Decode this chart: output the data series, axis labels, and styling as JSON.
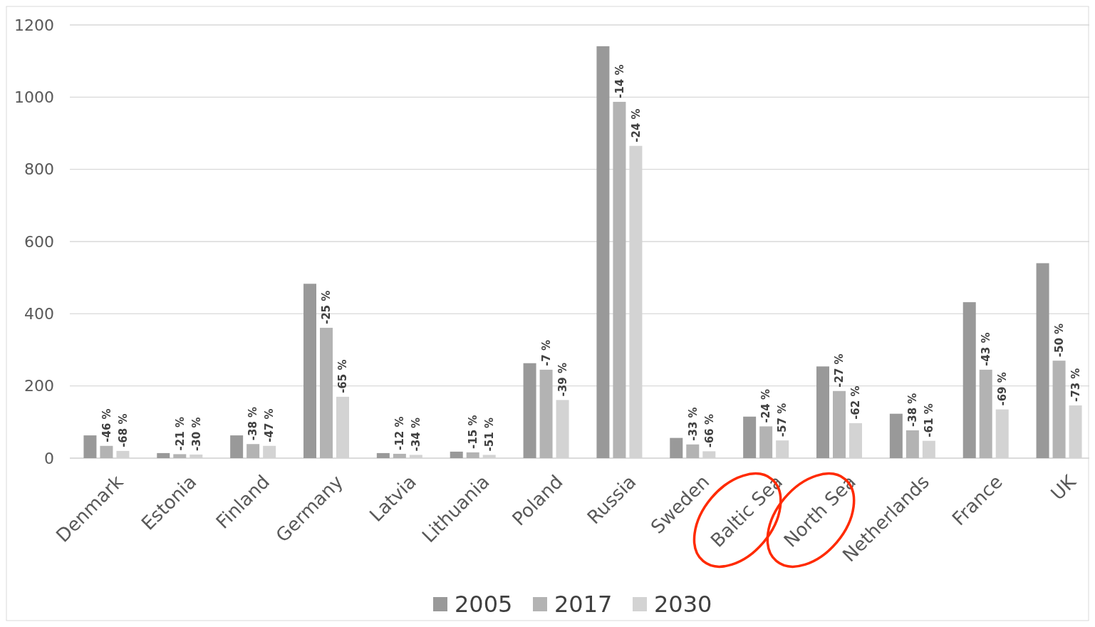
{
  "chart_data": {
    "type": "bar",
    "categories": [
      "Denmark",
      "Estonia",
      "Finland",
      "Germany",
      "Latvia",
      "Lithuania",
      "Poland",
      "Russia",
      "Sweden",
      "Baltic Sea",
      "North Sea",
      "Netherlands",
      "France",
      "UK"
    ],
    "series": [
      {
        "name": "2005",
        "color": "#999999",
        "values": [
          63,
          14,
          63,
          483,
          14,
          18,
          263,
          1141,
          56,
          115,
          254,
          123,
          432,
          540
        ]
      },
      {
        "name": "2017",
        "color": "#b3b3b3",
        "values": [
          34,
          11,
          39,
          361,
          12,
          16,
          245,
          987,
          38,
          88,
          186,
          77,
          245,
          270
        ]
      },
      {
        "name": "2030",
        "color": "#d3d3d3",
        "values": [
          20,
          10,
          34,
          170,
          9,
          9,
          161,
          865,
          19,
          49,
          97,
          48,
          135,
          146
        ]
      }
    ],
    "annotations": [
      "-46 %",
      "-68 %",
      {
        "text": "-21 %",
        "x": "Estonia",
        "y": 11
      },
      {
        "text": "-30 %",
        "x": "Estonia",
        "y": 10
      },
      "-38 %",
      "-47 %",
      {
        "text": "-25 %",
        "x": "Germany",
        "y": 361
      },
      {
        "text": "-65 %",
        "x": "Germany",
        "y": 170
      },
      {
        "text": "-12 %",
        "x": "Latvia",
        "y": 12
      },
      {
        "text": "-34 %",
        "x": "Latvia",
        "y": 9
      },
      {
        "text": "-15 %",
        "x": "Lithuania",
        "y": 16
      },
      {
        "text": "-51 %",
        "x": "Lithuania",
        "y": 9
      },
      {
        "text": "-7 %",
        "x": "Poland",
        "y": 245
      },
      {
        "text": "-39 %",
        "x": "Poland",
        "y": 161
      },
      {
        "text": "-14 %",
        "x": "Russia",
        "y": 987
      },
      {
        "text": "-24 %",
        "x": "Russia",
        "y": 865
      },
      {
        "text": "-33 %",
        "x": "Sweden",
        "y": 38
      },
      {
        "text": "-66 %",
        "x": "Sweden",
        "y": 19
      },
      {
        "text": "-24 %",
        "x": "Baltic Sea",
        "y": 88
      },
      {
        "text": "-57 %",
        "x": "Baltic Sea",
        "y": 49
      },
      {
        "text": "-27 %",
        "x": "North Sea",
        "y": 186
      },
      {
        "text": "-62 %",
        "x": "North Sea",
        "y": 97
      },
      {
        "text": "-38 %",
        "x": "Netherlands",
        "y": 77
      },
      {
        "text": "-61 %",
        "x": "Netherlands",
        "y": 48
      },
      {
        "text": "-43 %",
        "x": "France",
        "y": 245
      },
      {
        "text": "-69 %",
        "x": "France",
        "y": 135
      },
      {
        "text": "-50 %",
        "x": "UK",
        "y": 270
      },
      {
        "text": "-73 %",
        "x": "UK",
        "y": 146
      }
    ],
    "ylim": [
      0,
      1200
    ],
    "yticks": [
      0,
      200,
      400,
      600,
      800,
      1000,
      1200
    ],
    "grid": "y",
    "legend": "bottom"
  }
}
